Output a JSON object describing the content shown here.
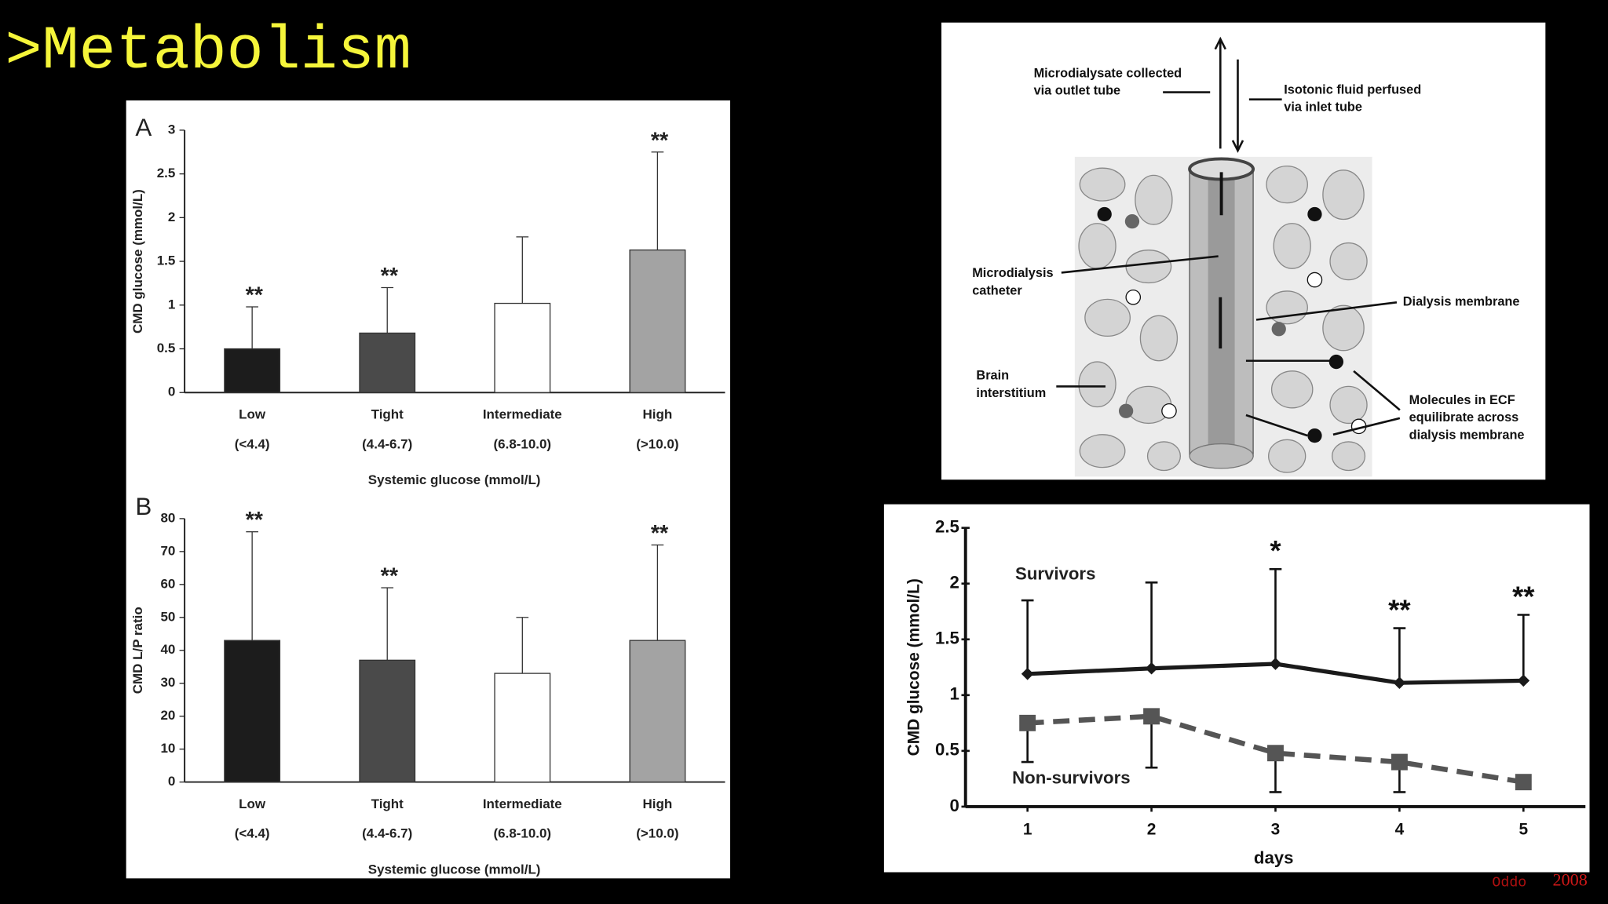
{
  "title": ">Metabolism",
  "citation": {
    "author": "Oddo",
    "year": "2008"
  },
  "diagram": {
    "labels": [
      {
        "lines": [
          "Microdialysate collected",
          "via outlet tube"
        ]
      },
      {
        "lines": [
          "Isotonic fluid perfused",
          "via inlet tube"
        ]
      },
      {
        "lines": [
          "Microdialysis",
          "catheter"
        ]
      },
      {
        "lines": [
          "Dialysis membrane"
        ]
      },
      {
        "lines": [
          "Brain",
          "interstitium"
        ]
      },
      {
        "lines": [
          "Molecules in ECF",
          "equilibrate across",
          "dialysis membrane"
        ]
      }
    ]
  },
  "chart_data": [
    {
      "type": "bar",
      "panel": "A",
      "categories": [
        "Low",
        "Tight",
        "Intermediate",
        "High"
      ],
      "category_sublabels": [
        "(<4.4)",
        "(4.4-6.7)",
        "(6.8-10.0)",
        "(>10.0)"
      ],
      "values": [
        0.5,
        0.68,
        1.02,
        1.63
      ],
      "errors": [
        0.48,
        0.52,
        0.76,
        1.12
      ],
      "significance": [
        "**",
        "**",
        null,
        "**"
      ],
      "colors": [
        "#1c1c1c",
        "#4a4a4a",
        "#ffffff",
        "#a3a3a3"
      ],
      "ylim": [
        0,
        3
      ],
      "yticks": [
        0,
        0.5,
        1,
        1.5,
        2,
        2.5,
        3
      ],
      "y_label": "CMD glucose (mmol/L)",
      "x_label": "Systemic glucose (mmol/L)"
    },
    {
      "type": "bar",
      "panel": "B",
      "categories": [
        "Low",
        "Tight",
        "Intermediate",
        "High"
      ],
      "category_sublabels": [
        "(<4.4)",
        "(4.4-6.7)",
        "(6.8-10.0)",
        "(>10.0)"
      ],
      "values": [
        43,
        37,
        33,
        43
      ],
      "errors": [
        33,
        22,
        17,
        29
      ],
      "significance": [
        "**",
        "**",
        null,
        "**"
      ],
      "colors": [
        "#1c1c1c",
        "#4a4a4a",
        "#ffffff",
        "#a3a3a3"
      ],
      "ylim": [
        0,
        80
      ],
      "yticks": [
        0,
        10,
        20,
        30,
        40,
        50,
        60,
        70,
        80
      ],
      "y_label": "CMD L/P ratio",
      "x_label": "Systemic glucose (mmol/L)"
    },
    {
      "type": "line",
      "x": [
        1,
        2,
        3,
        4,
        5
      ],
      "xlim": [
        0.5,
        5.5
      ],
      "xticks": [
        1,
        2,
        3,
        4,
        5
      ],
      "ylim": [
        0,
        2.5
      ],
      "yticks": [
        0,
        0.5,
        1,
        1.5,
        2,
        2.5
      ],
      "y_label": "CMD glucose (mmol/L)",
      "x_label": "days",
      "series": [
        {
          "name": "Survivors",
          "color": "#1a1a1a",
          "style": "solid",
          "marker": "diamond",
          "error_direction": "up",
          "values": [
            1.19,
            1.24,
            1.28,
            1.11,
            1.13
          ],
          "errors": [
            0.66,
            0.77,
            0.85,
            0.49,
            0.59
          ],
          "significance": [
            null,
            null,
            "*",
            "**",
            "**"
          ]
        },
        {
          "name": "Non-survivors",
          "color": "#555555",
          "style": "dashed",
          "marker": "square",
          "error_direction": "down",
          "values": [
            0.75,
            0.81,
            0.48,
            0.4,
            0.22
          ],
          "errors": [
            0.35,
            0.46,
            0.35,
            0.27,
            0.03
          ],
          "significance": [
            null,
            null,
            null,
            null,
            null
          ]
        }
      ]
    }
  ]
}
